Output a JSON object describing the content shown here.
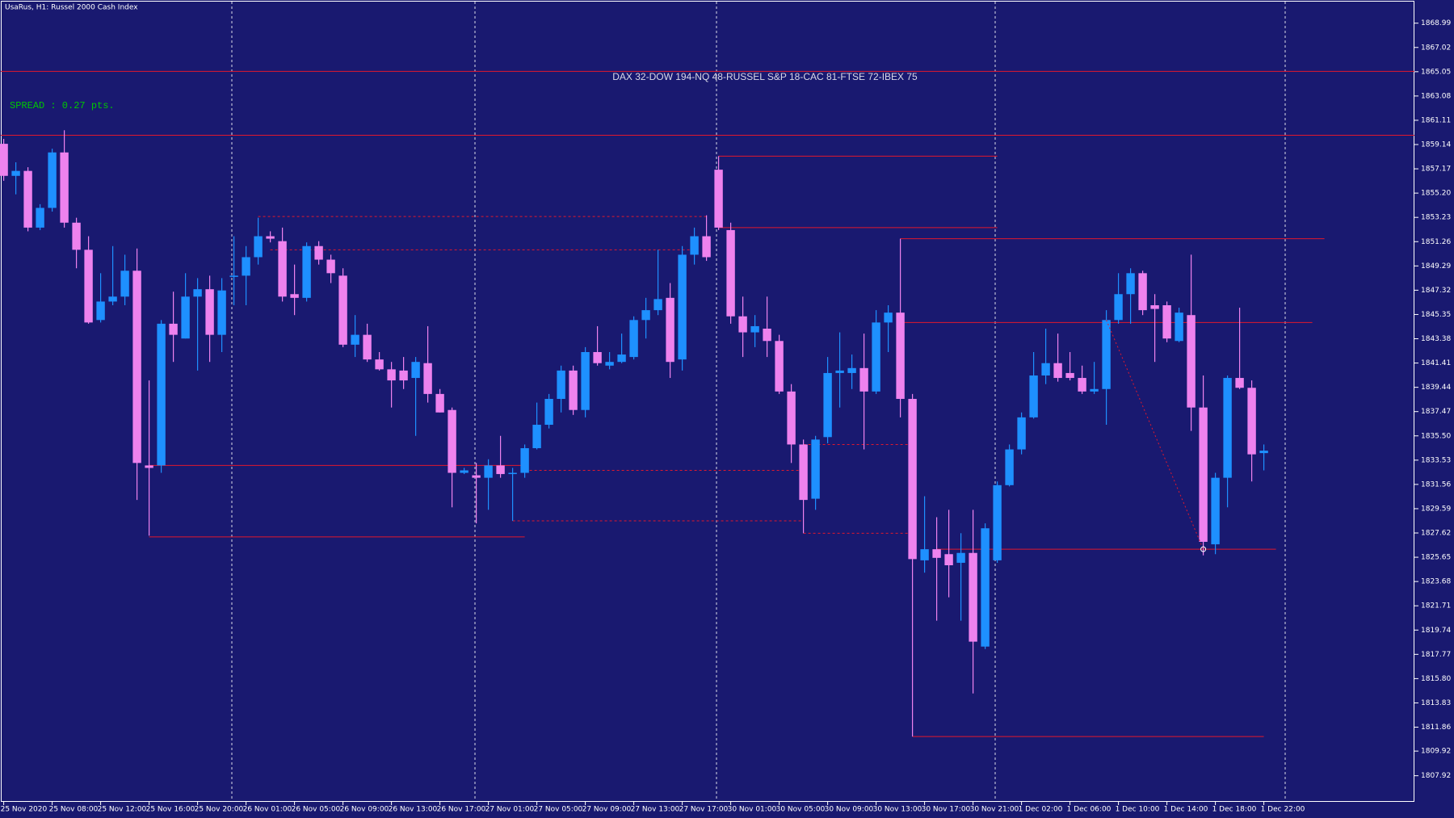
{
  "chart_data": {
    "type": "candlestick",
    "title": "UsaRus, H1:  Russel 2000 Cash Index",
    "annotations": [
      "DAX 32-DOW 194-NQ 48-RUSSEL S&P 18-CAC 81-FTSE 72-IBEX 75",
      "SPREAD : 0.27 pts."
    ],
    "up_color": "#1e90ff",
    "down_color": "#ee82ee",
    "level_color": "#e0182d",
    "categories": [
      "25 Nov 2020",
      null,
      null,
      null,
      "25 Nov 08:00",
      null,
      null,
      null,
      "25 Nov 12:00",
      null,
      null,
      null,
      "25 Nov 16:00",
      null,
      null,
      null,
      "25 Nov 20:00",
      null,
      null,
      null,
      "26 Nov 01:00",
      null,
      null,
      null,
      "26 Nov 05:00",
      null,
      null,
      null,
      "26 Nov 09:00",
      null,
      null,
      null,
      "26 Nov 13:00",
      null,
      null,
      null,
      "26 Nov 17:00",
      null,
      null,
      null,
      "27 Nov 01:00",
      null,
      null,
      null,
      "27 Nov 05:00",
      null,
      null,
      null,
      "27 Nov 09:00",
      null,
      null,
      null,
      "27 Nov 13:00",
      null,
      null,
      null,
      "27 Nov 17:00",
      null,
      null,
      null,
      "30 Nov 01:00",
      null,
      null,
      null,
      "30 Nov 05:00",
      null,
      null,
      null,
      "30 Nov 09:00",
      null,
      null,
      null,
      "30 Nov 13:00",
      null,
      null,
      null,
      "30 Nov 17:00",
      null,
      null,
      null,
      "30 Nov 21:00",
      null,
      null,
      null,
      "1 Dec 02:00",
      null,
      null,
      null,
      "1 Dec 06:00",
      null,
      null,
      null,
      "1 Dec 10:00",
      null,
      null,
      null,
      "1 Dec 14:00",
      null,
      null,
      null,
      "1 Dec 18:00",
      null,
      null,
      null,
      "1 Dec 22:00"
    ],
    "open": [
      1859.2,
      1856.6,
      1857.0,
      1852.4,
      1854.0,
      1858.5,
      1852.8,
      1850.6,
      1844.9,
      1846.4,
      1846.8,
      1848.9,
      1833.1,
      1833.1,
      1844.6,
      1843.4,
      1846.8,
      1847.4,
      1843.7,
      1848.4,
      1848.5,
      1850.0,
      1851.7,
      1851.3,
      1847.0,
      1846.7,
      1850.9,
      1849.8,
      1848.5,
      1842.9,
      1843.7,
      1841.7,
      1840.9,
      1840.8,
      1840.2,
      1841.4,
      1838.9,
      1837.6,
      1832.5,
      1832.3,
      1832.1,
      1833.1,
      1832.4,
      1832.5,
      1834.5,
      1836.4,
      1838.5,
      1840.8,
      1837.6,
      1842.3,
      1841.2,
      1841.5,
      1841.9,
      1844.9,
      1845.7,
      1846.7,
      1841.7,
      1850.2,
      1851.7,
      1857.1,
      1852.2,
      1845.2,
      1843.9,
      1844.2,
      1843.2,
      1839.1,
      1834.8,
      1830.4,
      1835.4,
      1840.6,
      1840.6,
      1841.0,
      1839.1,
      1844.7,
      1845.5,
      1838.5,
      1825.4,
      1826.3,
      1825.9,
      1825.2,
      1826.0,
      1818.4,
      1825.4,
      1831.5,
      1834.4,
      1837.0,
      1840.4,
      1841.4,
      1840.6,
      1840.2,
      1839.1,
      1839.3,
      1844.9,
      1847.0,
      1848.7,
      1846.1,
      1846.1,
      1843.2,
      1845.3,
      1837.8,
      1826.7,
      1832.1,
      1840.2,
      1839.4,
      1834.1
    ],
    "close": [
      1856.6,
      1857.0,
      1852.4,
      1854.0,
      1858.5,
      1852.8,
      1850.6,
      1844.7,
      1846.4,
      1846.8,
      1848.9,
      1833.3,
      1832.9,
      1844.6,
      1843.7,
      1846.8,
      1847.4,
      1843.7,
      1847.3,
      1848.5,
      1850.0,
      1851.7,
      1851.5,
      1846.8,
      1846.7,
      1850.9,
      1849.8,
      1848.7,
      1842.9,
      1843.7,
      1841.7,
      1840.9,
      1840.0,
      1840.0,
      1841.5,
      1838.9,
      1837.4,
      1832.5,
      1832.7,
      1832.1,
      1833.1,
      1832.4,
      1832.5,
      1834.5,
      1836.4,
      1838.5,
      1840.8,
      1837.6,
      1842.3,
      1841.4,
      1841.5,
      1842.1,
      1844.9,
      1845.7,
      1846.6,
      1841.5,
      1850.2,
      1851.7,
      1850.0,
      1852.4,
      1845.2,
      1843.9,
      1844.4,
      1843.2,
      1839.1,
      1834.8,
      1830.3,
      1835.2,
      1840.6,
      1840.8,
      1841.0,
      1839.1,
      1844.7,
      1845.5,
      1838.5,
      1825.5,
      1826.3,
      1825.6,
      1825.0,
      1826.0,
      1818.8,
      1828.0,
      1831.5,
      1834.4,
      1837.0,
      1840.4,
      1841.4,
      1840.2,
      1840.2,
      1839.1,
      1839.3,
      1844.9,
      1847.0,
      1848.7,
      1845.7,
      1845.8,
      1843.4,
      1845.5,
      1837.8,
      1826.9,
      1832.1,
      1840.2,
      1839.4,
      1834.0,
      1834.3
    ],
    "high": [
      1859.6,
      1857.7,
      1857.3,
      1854.3,
      1858.8,
      1860.3,
      1853.2,
      1851.7,
      1848.7,
      1850.9,
      1850.2,
      1850.7,
      1840.0,
      1844.9,
      1847.2,
      1848.7,
      1848.3,
      1848.5,
      1848.3,
      1851.7,
      1850.9,
      1853.2,
      1852.1,
      1852.4,
      1849.4,
      1851.2,
      1851.3,
      1850.2,
      1849.1,
      1845.3,
      1844.6,
      1842.3,
      1841.5,
      1841.9,
      1841.9,
      1844.4,
      1839.3,
      1837.8,
      1832.9,
      1833.3,
      1833.6,
      1835.5,
      1832.9,
      1834.8,
      1838.2,
      1838.9,
      1841.2,
      1841.2,
      1842.7,
      1844.4,
      1842.3,
      1843.8,
      1845.2,
      1846.7,
      1850.6,
      1847.9,
      1850.9,
      1852.4,
      1853.4,
      1858.2,
      1852.8,
      1846.8,
      1845.3,
      1846.8,
      1843.7,
      1839.7,
      1835.2,
      1835.5,
      1841.9,
      1843.9,
      1842.1,
      1843.8,
      1845.7,
      1846.1,
      1851.5,
      1838.9,
      1830.6,
      1828.9,
      1829.5,
      1827.6,
      1829.5,
      1828.4,
      1831.8,
      1834.8,
      1837.4,
      1842.3,
      1844.2,
      1843.8,
      1842.3,
      1841.2,
      1841.5,
      1845.7,
      1848.7,
      1849.1,
      1848.9,
      1847.0,
      1846.4,
      1845.9,
      1850.2,
      1840.4,
      1832.5,
      1840.4,
      1845.9,
      1840.0,
      1834.8
    ],
    "low": [
      1856.2,
      1855.1,
      1852.1,
      1852.2,
      1853.7,
      1852.4,
      1849.1,
      1844.6,
      1844.7,
      1846.1,
      1846.1,
      1830.3,
      1827.4,
      1832.5,
      1841.5,
      1843.4,
      1840.8,
      1841.5,
      1842.3,
      1846.1,
      1846.1,
      1849.4,
      1851.2,
      1846.4,
      1845.3,
      1846.4,
      1849.4,
      1847.9,
      1842.7,
      1841.9,
      1841.5,
      1840.8,
      1837.8,
      1839.3,
      1835.5,
      1838.2,
      1837.4,
      1829.7,
      1832.4,
      1828.4,
      1829.5,
      1832.1,
      1828.6,
      1832.1,
      1834.4,
      1836.1,
      1837.4,
      1837.2,
      1837.0,
      1841.2,
      1840.9,
      1841.4,
      1841.7,
      1843.4,
      1845.3,
      1840.2,
      1840.8,
      1849.4,
      1849.7,
      1852.2,
      1844.6,
      1841.9,
      1842.7,
      1841.9,
      1838.9,
      1833.3,
      1827.6,
      1829.5,
      1834.9,
      1837.8,
      1839.3,
      1834.4,
      1838.9,
      1842.3,
      1837.0,
      1811.1,
      1824.4,
      1820.5,
      1822.4,
      1820.5,
      1814.6,
      1818.2,
      1825.2,
      1831.4,
      1834.0,
      1836.9,
      1839.7,
      1839.9,
      1840.0,
      1838.9,
      1838.9,
      1836.4,
      1844.6,
      1844.6,
      1845.3,
      1841.5,
      1843.1,
      1843.1,
      1835.9,
      1825.8,
      1825.9,
      1829.7,
      1839.3,
      1831.8,
      1832.7
    ],
    "levels": [
      {
        "price": 1865.08,
        "span": "full"
      },
      {
        "price": 1859.89,
        "span": "full"
      },
      {
        "price": 1858.2,
        "from": 59,
        "to": 82,
        "style": "solid"
      },
      {
        "price": 1852.4,
        "from": 59,
        "to": 82,
        "style": "solid"
      },
      {
        "price": 1851.5,
        "from": 74,
        "to": 109,
        "style": "solid"
      },
      {
        "price": 1844.7,
        "from": 74,
        "to": 108,
        "style": "solid"
      },
      {
        "price": 1833.1,
        "from": 12,
        "to": 43,
        "style": "solid"
      },
      {
        "price": 1827.3,
        "from": 12,
        "to": 43,
        "style": "solid"
      },
      {
        "price": 1826.3,
        "from": 77,
        "to": 105,
        "style": "solid"
      },
      {
        "price": 1811.1,
        "from": 75,
        "to": 104,
        "style": "solid"
      },
      {
        "price": 1853.3,
        "from": 21,
        "to": 58,
        "style": "dashed"
      },
      {
        "price": 1850.6,
        "from": 22,
        "to": 57,
        "style": "dashed"
      },
      {
        "price": 1832.7,
        "from": 43,
        "to": 66,
        "style": "dashed"
      },
      {
        "price": 1828.6,
        "from": 42,
        "to": 66,
        "style": "dashed"
      },
      {
        "price": 1834.8,
        "from": 66,
        "to": 75,
        "style": "dashed"
      },
      {
        "price": 1827.6,
        "from": 66,
        "to": 75,
        "style": "dashed"
      }
    ],
    "trend": {
      "from": 91,
      "to": 99,
      "start": 1844.9,
      "end": 1826.3
    },
    "ylim": [
      1805.8,
      1870.87
    ],
    "yticks": [
      1868.99,
      1867.02,
      1865.05,
      1863.08,
      1861.11,
      1859.14,
      1857.17,
      {
        "value": 1855.2,
        "label": "1855.20"
      },
      1853.23,
      1851.26,
      1849.29,
      1847.32,
      1845.35,
      1843.38,
      1841.41,
      1839.44,
      1837.47,
      {
        "value": 1835.5,
        "label": "1835.50"
      },
      1833.53,
      1831.56,
      1829.59,
      1827.62,
      1825.65,
      1823.68,
      1821.71,
      1819.74,
      1817.77,
      {
        "value": 1815.8,
        "label": "1815.80"
      },
      1813.83,
      1811.86,
      1809.92,
      1807.92
    ]
  }
}
